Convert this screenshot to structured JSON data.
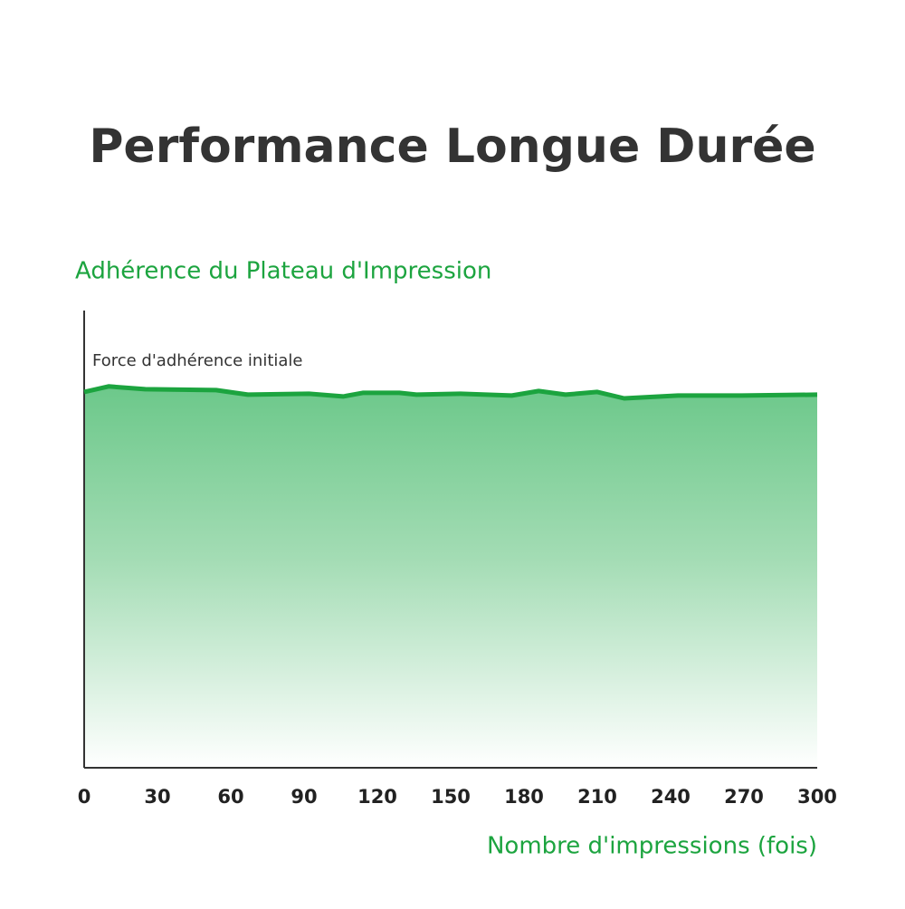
{
  "chart_data": {
    "type": "area",
    "title": "Performance Longue Durée",
    "y_label": "Adhérence du Plateau d'Impression",
    "x_label": "Nombre d'impressions (fois)",
    "annotation": "Force d'adhérence initiale",
    "color": "#1ca43f",
    "x": [
      0,
      10,
      25,
      54,
      67,
      92,
      106,
      114,
      129,
      136,
      154,
      175,
      186,
      197,
      210,
      221,
      243,
      269,
      300
    ],
    "values": [
      82.2,
      83.4,
      82.8,
      82.6,
      81.6,
      81.8,
      81.2,
      82.0,
      82.0,
      81.6,
      81.8,
      81.4,
      82.4,
      81.6,
      82.2,
      80.8,
      81.4,
      81.4,
      81.6
    ],
    "xlim": [
      0,
      300
    ],
    "xticks": [
      0,
      30,
      60,
      90,
      120,
      150,
      180,
      210,
      240,
      270,
      300
    ],
    "ylim": [
      0,
      100
    ],
    "grid": false
  }
}
